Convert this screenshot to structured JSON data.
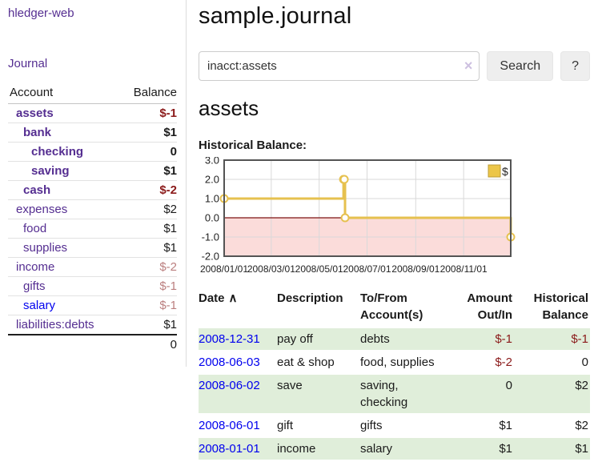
{
  "colors": {
    "purple": "#552e91",
    "blue": "#0000ee",
    "negstrong": "#8b1a1a",
    "negsoft": "#bb7f7f",
    "stripe": "#e0eeda",
    "divider": "#dddddd",
    "inputborder": "#cccccc",
    "clearicon": "#cdc0e0",
    "btnbg": "#eeeeee",
    "gold": "#e6c14f",
    "gold_fill": "#ecc649",
    "gold_border": "#bc9c38",
    "negative_fill": "#fbdcda",
    "zero_line": "#7c1313",
    "frame": "#545454",
    "grid": "#d9d9d9"
  },
  "sidebar": {
    "brand": "hledger-web",
    "journal_link": "Journal",
    "accounts_table": {
      "headers": {
        "account": "Account",
        "balance": "Balance"
      },
      "rows": [
        {
          "name": "assets",
          "balance": "$-1",
          "level": 1,
          "bold": true,
          "neg": "strong"
        },
        {
          "name": "bank",
          "balance": "$1",
          "level": 2,
          "bold": true
        },
        {
          "name": "checking",
          "balance": "0",
          "level": 3,
          "bold": true
        },
        {
          "name": "saving",
          "balance": "$1",
          "level": 3,
          "bold": true
        },
        {
          "name": "cash",
          "balance": "$-2",
          "level": 2,
          "bold": true,
          "neg": "strong"
        },
        {
          "name": "expenses",
          "balance": "$2",
          "level": 1
        },
        {
          "name": "food",
          "balance": "$1",
          "level": 2
        },
        {
          "name": "supplies",
          "balance": "$1",
          "level": 2
        },
        {
          "name": "income",
          "balance": "$-2",
          "level": 1,
          "neg": "soft"
        },
        {
          "name": "gifts",
          "balance": "$-1",
          "level": 2,
          "neg": "soft"
        },
        {
          "name": "salary",
          "balance": "$-1",
          "level": 2,
          "neg": "soft",
          "link": "blue"
        },
        {
          "name": "liabilities:debts",
          "balance": "$1",
          "level": 1
        }
      ],
      "total": "0"
    }
  },
  "main": {
    "title": "sample.journal",
    "search": {
      "value": "inacct:assets",
      "clear_icon": "×",
      "button_label": "Search",
      "help_label": "?"
    },
    "account_heading": "assets",
    "chart_label": "Historical Balance:"
  },
  "chart_data": {
    "type": "line",
    "subtype": "step-after",
    "title": "Historical Balance:",
    "series": [
      {
        "name": "$",
        "points": [
          {
            "date": "2008-01-01",
            "value": 1
          },
          {
            "date": "2008-06-01",
            "value": 2
          },
          {
            "date": "2008-06-02",
            "value": 2
          },
          {
            "date": "2008-06-03",
            "value": 0
          },
          {
            "date": "2008-12-31",
            "value": -1
          }
        ]
      }
    ],
    "x_range": [
      "2008-01-01",
      "2008-12-31"
    ],
    "x_ticks": [
      "2008/01/01",
      "2008/03/01",
      "2008/05/01",
      "2008/07/01",
      "2008/09/01",
      "2008/11/01"
    ],
    "y_ticks": [
      "3.0",
      "2.0",
      "1.0",
      "0.0",
      "-1.0",
      "-2.0"
    ],
    "ylim": [
      -2,
      3
    ],
    "grid": true,
    "legend": {
      "label": "$",
      "position": "top-right"
    },
    "negative_region_shaded": true
  },
  "register_table": {
    "headers": {
      "date": "Date",
      "sort_icon": "∧",
      "description": "Description",
      "accounts": "To/From Account(s)",
      "amount": "Amount Out/In",
      "balance": "Historical Balance"
    },
    "rows": [
      {
        "date": "2008-12-31",
        "description": "pay off",
        "accounts": "debts",
        "amount": "$-1",
        "amount_neg": true,
        "balance": "$-1",
        "balance_neg": true
      },
      {
        "date": "2008-06-03",
        "description": "eat & shop",
        "accounts": "food, supplies",
        "amount": "$-2",
        "amount_neg": true,
        "balance": "0",
        "balance_neg": false
      },
      {
        "date": "2008-06-02",
        "description": "save",
        "accounts": "saving, checking",
        "amount": "0",
        "amount_neg": false,
        "balance": "$2",
        "balance_neg": false
      },
      {
        "date": "2008-06-01",
        "description": "gift",
        "accounts": "gifts",
        "amount": "$1",
        "amount_neg": false,
        "balance": "$2",
        "balance_neg": false
      },
      {
        "date": "2008-01-01",
        "description": "income",
        "accounts": "salary",
        "amount": "$1",
        "amount_neg": false,
        "balance": "$1",
        "balance_neg": false
      }
    ]
  }
}
